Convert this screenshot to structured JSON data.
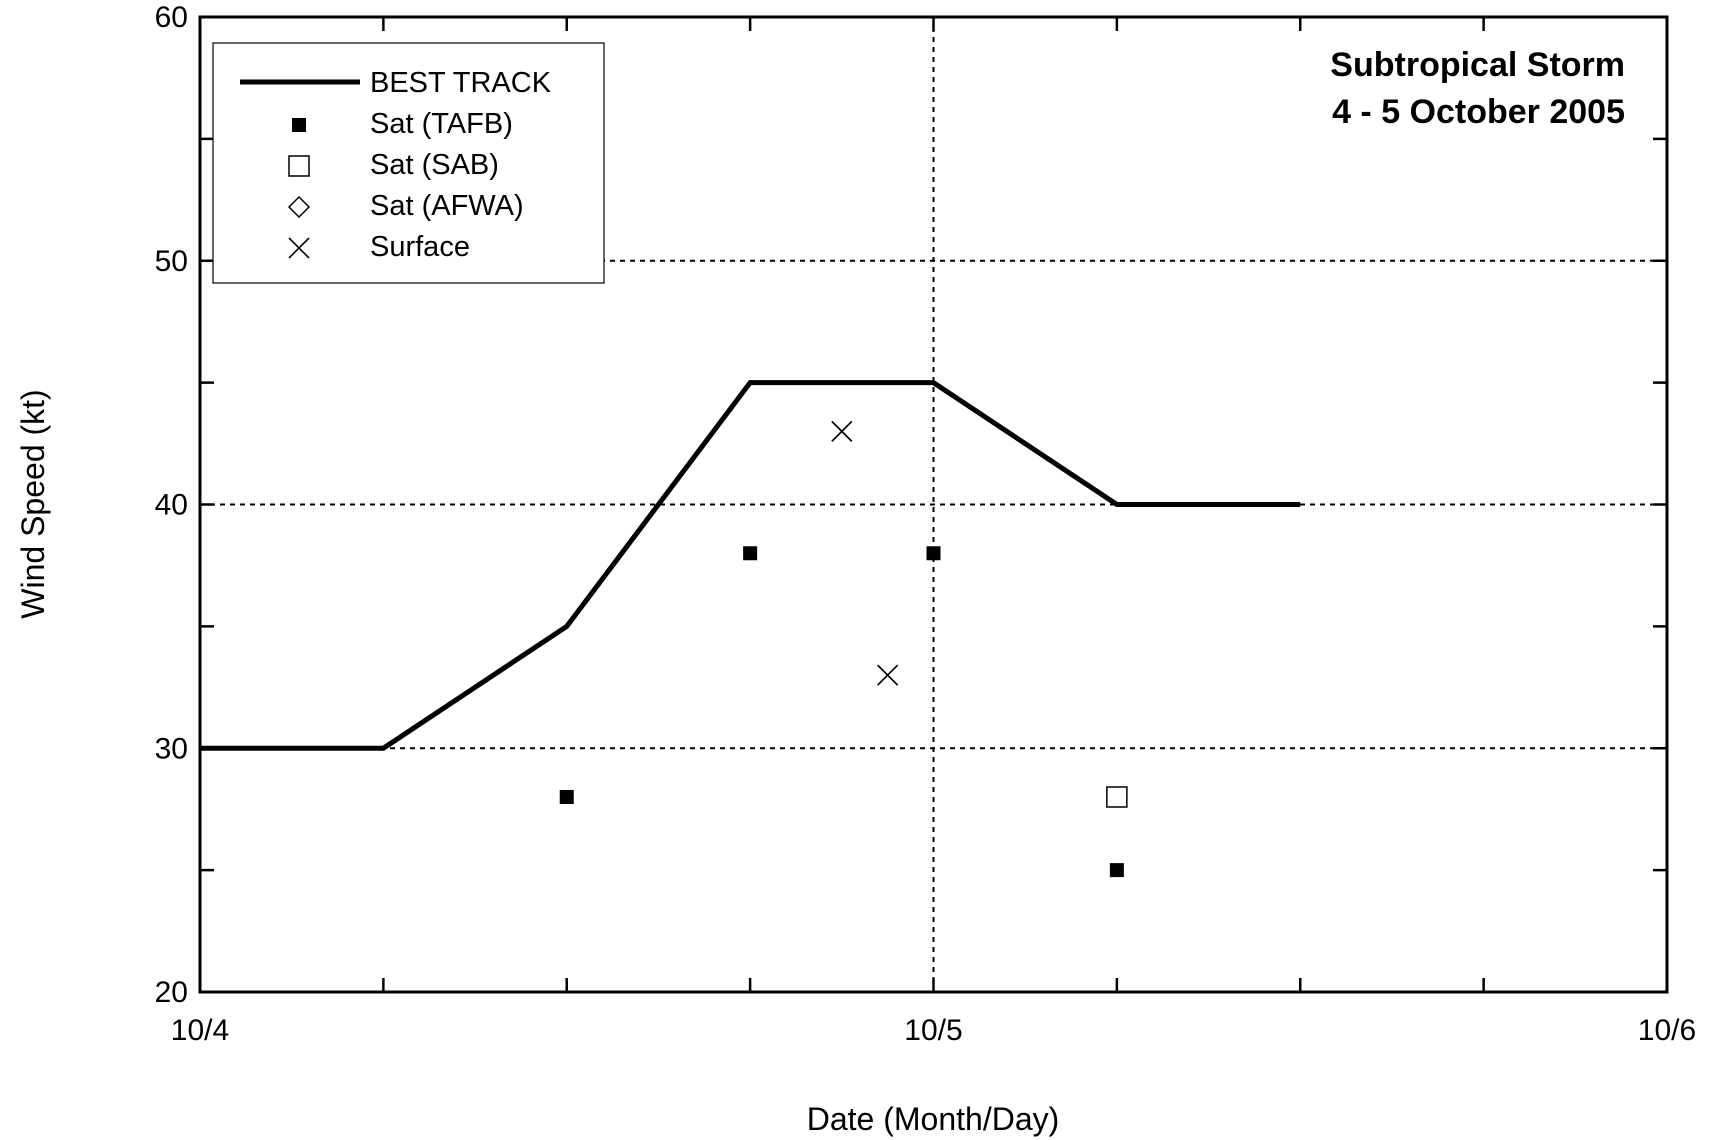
{
  "chart_data": {
    "type": "line",
    "title_lines": [
      "Subtropical Storm",
      "4 - 5 October 2005"
    ],
    "xlabel": "Date (Month/Day)",
    "ylabel": "Wind Speed (kt)",
    "x_unit": "days since 10/4 00 UTC",
    "xlim": [
      0,
      2
    ],
    "ylim": [
      20,
      60
    ],
    "x_tick_labels": [
      {
        "x": 0,
        "label": "10/4"
      },
      {
        "x": 1,
        "label": "10/5"
      },
      {
        "x": 2,
        "label": "10/6"
      }
    ],
    "y_tick_labels": [
      {
        "y": 20,
        "label": "20"
      },
      {
        "y": 30,
        "label": "30"
      },
      {
        "y": 40,
        "label": "40"
      },
      {
        "y": 50,
        "label": "50"
      },
      {
        "y": 60,
        "label": "60"
      }
    ],
    "x_minor_ticks": [
      0.25,
      0.5,
      0.75,
      1.25,
      1.5,
      1.75
    ],
    "y_minor_ticks": [
      25,
      35,
      45,
      55
    ],
    "grid_x": [
      1
    ],
    "grid_y": [
      30,
      40,
      50
    ],
    "legend_position": "top-left",
    "series": [
      {
        "name": "BEST TRACK",
        "marker": "line",
        "points": [
          [
            0,
            30
          ],
          [
            0.25,
            30
          ],
          [
            0.5,
            35
          ],
          [
            0.75,
            45
          ],
          [
            1.0,
            45
          ],
          [
            1.25,
            40
          ],
          [
            1.5,
            40
          ]
        ]
      },
      {
        "name": "Sat (TAFB)",
        "marker": "filled-square",
        "points": [
          [
            0.5,
            28
          ],
          [
            0.75,
            38
          ],
          [
            1.0,
            38
          ],
          [
            1.25,
            25
          ]
        ]
      },
      {
        "name": "Sat (SAB)",
        "marker": "open-square",
        "points": [
          [
            1.25,
            28
          ]
        ]
      },
      {
        "name": "Sat (AFWA)",
        "marker": "open-diamond",
        "points": []
      },
      {
        "name": "Surface",
        "marker": "x-cross",
        "points": [
          [
            0.875,
            43
          ],
          [
            0.9375,
            33
          ]
        ]
      }
    ]
  }
}
